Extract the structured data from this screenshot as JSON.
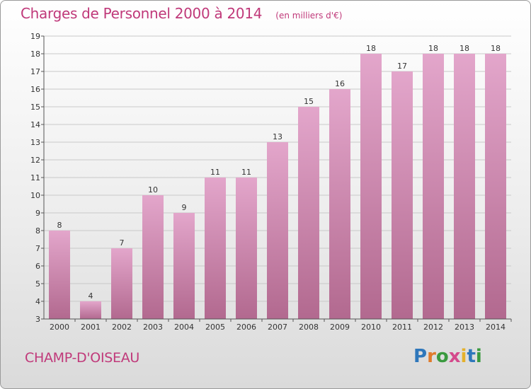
{
  "header": {
    "title": "Charges de Personnel 2000 à 2014",
    "unit_note": "(en milliers d'€)"
  },
  "footer": {
    "place": "CHAMP-D'OISEAU",
    "logo": [
      "P",
      "r",
      "o",
      "x",
      "i",
      "t",
      "i"
    ]
  },
  "colors": {
    "title": "#c0397a",
    "bar_top": "#e3a6cb",
    "bar_bottom": "#b2698f",
    "logo": [
      "#2e77bb",
      "#e07b2b",
      "#3a9a3f",
      "#d44a8c",
      "#e4b12c",
      "#2e77bb",
      "#3a9a3f"
    ]
  },
  "chart_data": {
    "type": "bar",
    "categories": [
      "2000",
      "2001",
      "2002",
      "2003",
      "2004",
      "2005",
      "2006",
      "2007",
      "2008",
      "2009",
      "2010",
      "2011",
      "2012",
      "2013",
      "2014"
    ],
    "values": [
      8,
      4,
      7,
      10,
      9,
      11,
      11,
      13,
      15,
      16,
      18,
      17,
      18,
      18,
      18
    ],
    "data_labels": [
      "8",
      "4",
      "7",
      "10",
      "9",
      "11",
      "11",
      "13",
      "15",
      "16",
      "18",
      "17",
      "18",
      "18",
      "18"
    ],
    "title": "Charges de Personnel 2000 à 2014",
    "ylim": [
      3,
      19
    ],
    "yticks": [
      "3",
      "4",
      "5",
      "6",
      "7",
      "8",
      "9",
      "10",
      "11",
      "12",
      "13",
      "14",
      "15",
      "16",
      "17",
      "18",
      "19"
    ],
    "grid": true
  }
}
